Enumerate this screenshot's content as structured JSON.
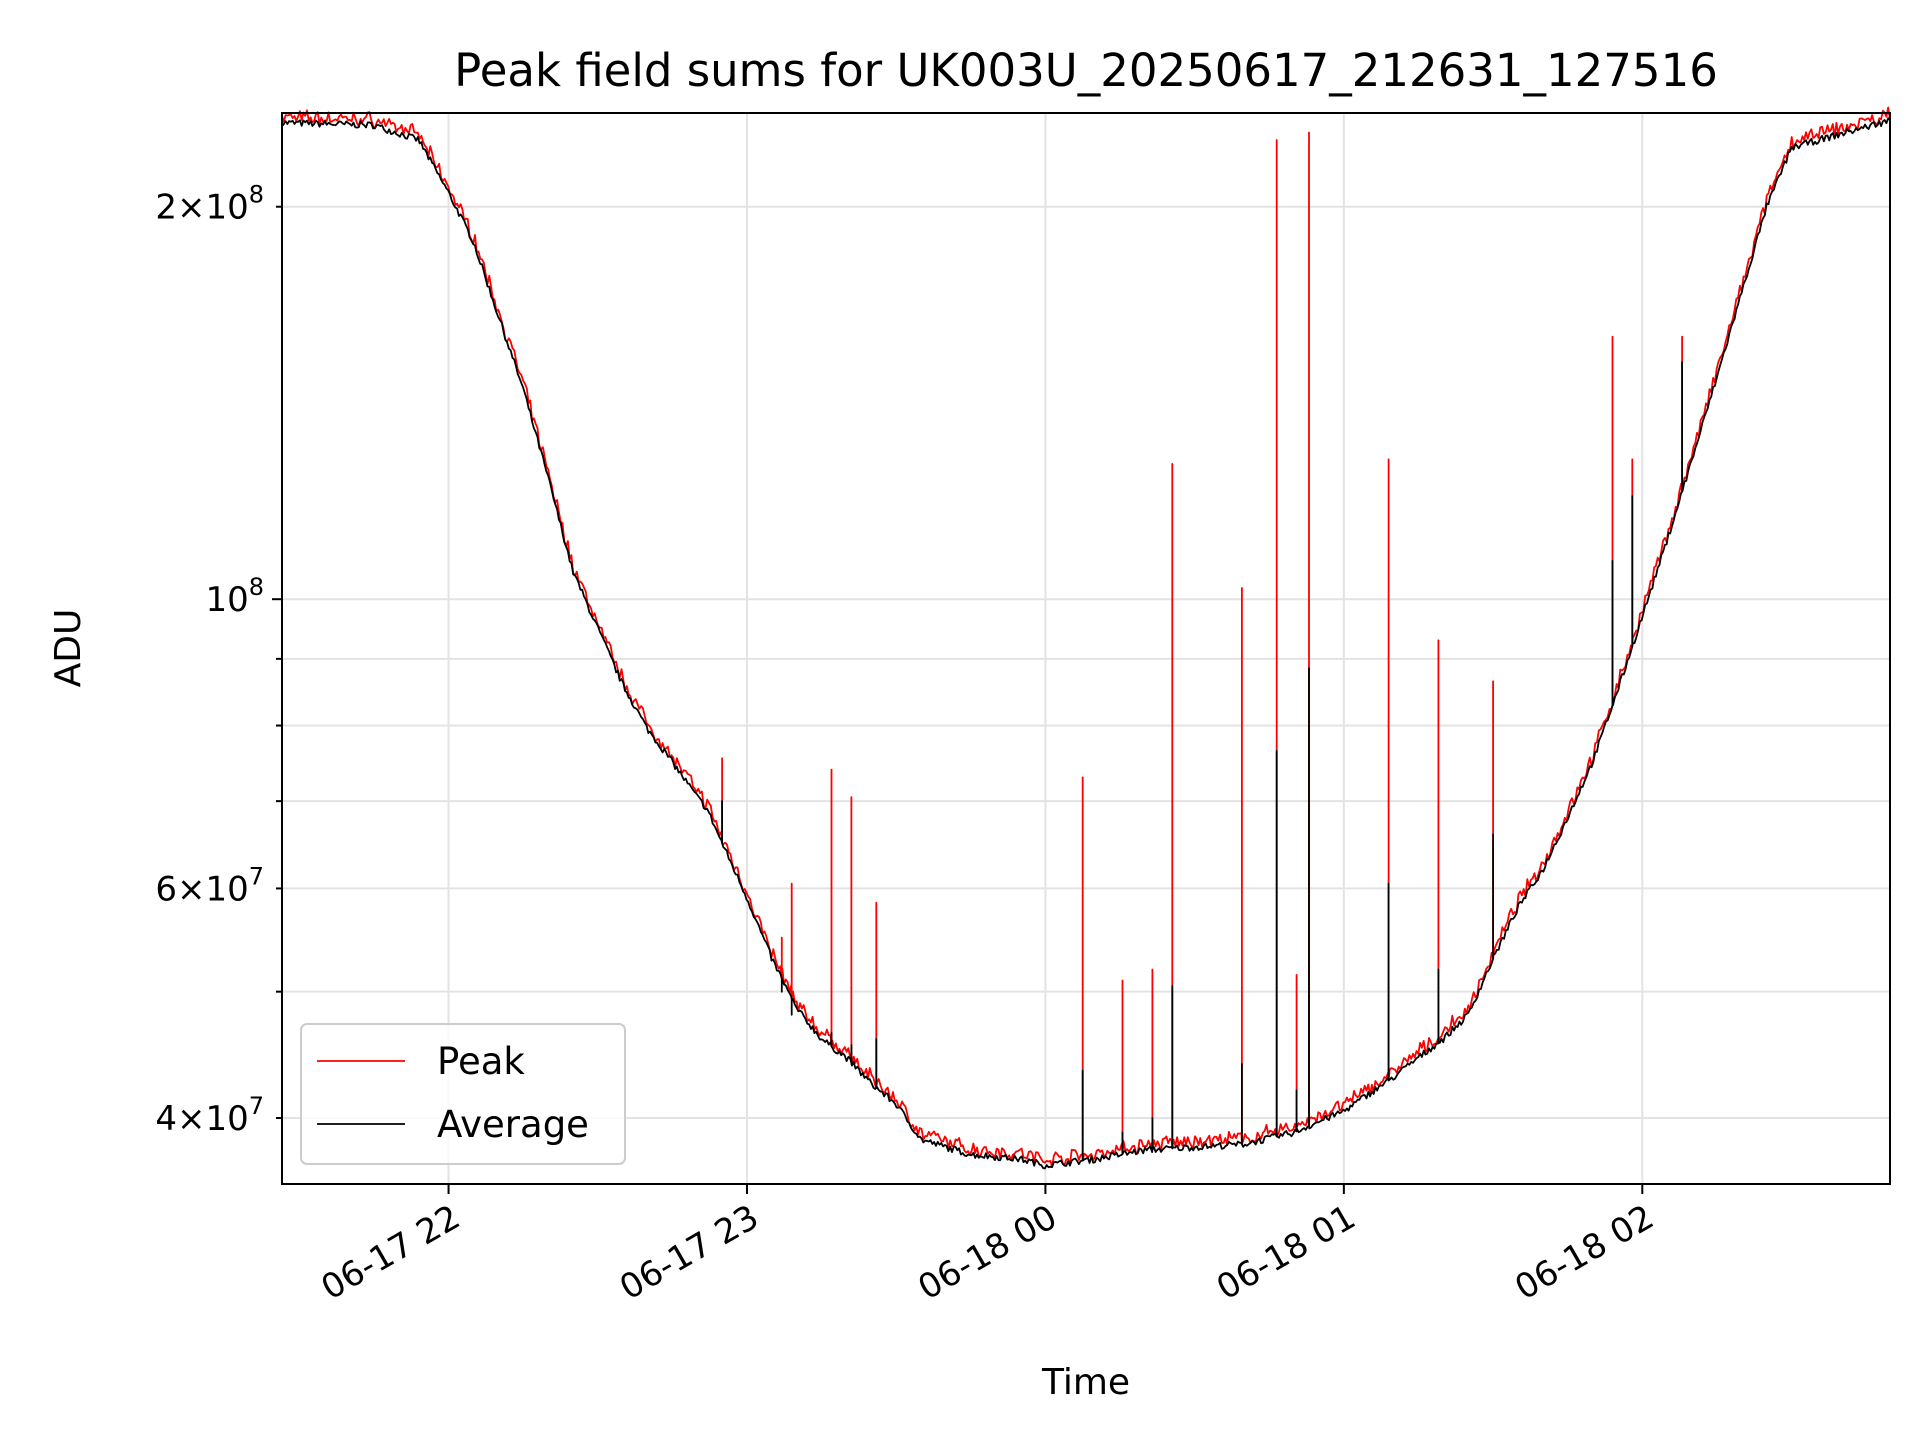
{
  "chart_data": {
    "type": "line",
    "title": "Peak field sums for UK003U_20250617_212631_127516",
    "xlabel": "Time",
    "ylabel": "ADU",
    "yscale": "log",
    "xlim": [
      "2025-06-17 21:26:31",
      "2025-06-18 02:49:48"
    ],
    "ylim": [
      35600000,
      236000000
    ],
    "grid": true,
    "legend_position": "lower left",
    "x_ticks": [
      {
        "value": "2025-06-17 22:00",
        "label": "06-17 22"
      },
      {
        "value": "2025-06-17 23:00",
        "label": "06-17 23"
      },
      {
        "value": "2025-06-18 00:00",
        "label": "06-18 00"
      },
      {
        "value": "2025-06-18 01:00",
        "label": "06-18 01"
      },
      {
        "value": "2025-06-18 02:00",
        "label": "06-18 02"
      }
    ],
    "y_major_ticks": [
      {
        "value": 100000000,
        "base": "10",
        "exp": "8"
      }
    ],
    "y_minor_ticks": [
      {
        "value": 40000000,
        "mant": "4",
        "exp": "7"
      },
      {
        "value": 60000000,
        "mant": "6",
        "exp": "7"
      },
      {
        "value": 200000000,
        "mant": "2",
        "exp": "8"
      }
    ],
    "y_minor_unlabeled": [
      50000000,
      70000000,
      80000000,
      90000000
    ],
    "baseline": {
      "x": [
        "2025-06-17 21:26:31",
        "2025-06-17 21:45:00",
        "2025-06-17 21:54:00",
        "2025-06-17 22:00:00",
        "2025-06-17 22:05:00",
        "2025-06-17 22:10:00",
        "2025-06-17 22:15:00",
        "2025-06-17 22:20:00",
        "2025-06-17 22:25:00",
        "2025-06-17 22:30:00",
        "2025-06-17 22:35:00",
        "2025-06-17 22:40:00",
        "2025-06-17 22:45:00",
        "2025-06-17 22:50:00",
        "2025-06-17 22:52:00",
        "2025-06-17 22:55:00",
        "2025-06-17 23:00:00",
        "2025-06-17 23:05:00",
        "2025-06-17 23:10:00",
        "2025-06-17 23:15:00",
        "2025-06-17 23:20:00",
        "2025-06-17 23:25:00",
        "2025-06-17 23:30:00",
        "2025-06-17 23:35:00",
        "2025-06-17 23:45:00",
        "2025-06-17 23:55:00",
        "2025-06-18 00:00:00",
        "2025-06-18 00:10:00",
        "2025-06-18 00:20:00",
        "2025-06-18 00:30:00",
        "2025-06-18 00:40:00",
        "2025-06-18 00:50:00",
        "2025-06-18 01:00:00",
        "2025-06-18 01:10:00",
        "2025-06-18 01:15:00",
        "2025-06-18 01:20:00",
        "2025-06-18 01:25:00",
        "2025-06-18 01:30:00",
        "2025-06-18 01:35:00",
        "2025-06-18 01:40:00",
        "2025-06-18 01:45:00",
        "2025-06-18 01:50:00",
        "2025-06-18 01:55:00",
        "2025-06-18 02:00:00",
        "2025-06-18 02:05:00",
        "2025-06-18 02:10:00",
        "2025-06-18 02:15:00",
        "2025-06-18 02:20:00",
        "2025-06-18 02:25:00",
        "2025-06-18 02:30:00",
        "2025-06-18 02:49:48"
      ],
      "average": [
        232000000,
        231000000,
        225000000,
        205000000,
        188000000,
        165000000,
        145000000,
        124000000,
        105000000,
        95000000,
        86000000,
        79500000,
        75000000,
        70500000,
        69000000,
        65000000,
        59000000,
        53000000,
        48500000,
        46000000,
        44500000,
        42500000,
        41000000,
        38500000,
        37500000,
        37200000,
        36800000,
        37200000,
        37800000,
        38000000,
        38200000,
        39000000,
        40500000,
        43000000,
        44500000,
        46000000,
        48000000,
        53000000,
        58000000,
        62000000,
        68000000,
        75000000,
        85000000,
        97000000,
        111000000,
        128000000,
        148000000,
        172000000,
        200000000,
        222000000,
        233000000
      ],
      "peak_offset_ratio": 1.02
    },
    "spikes": [
      {
        "x": "2025-06-17 22:55:00",
        "peak": 75500000,
        "average": 70000000
      },
      {
        "x": "2025-06-17 23:07:00",
        "peak": 55000000,
        "average": 50000000
      },
      {
        "x": "2025-06-17 23:09:00",
        "peak": 60500000,
        "average": 48000000
      },
      {
        "x": "2025-06-17 23:17:00",
        "peak": 74000000,
        "average": 46500000
      },
      {
        "x": "2025-06-17 23:21:00",
        "peak": 70500000,
        "average": 45500000
      },
      {
        "x": "2025-06-17 23:26:00",
        "peak": 58500000,
        "average": 46000000
      },
      {
        "x": "2025-06-18 00:07:30",
        "peak": 73000000,
        "average": 43500000
      },
      {
        "x": "2025-06-18 00:15:30",
        "peak": 51000000,
        "average": 39000000
      },
      {
        "x": "2025-06-18 00:21:30",
        "peak": 52000000,
        "average": 40000000
      },
      {
        "x": "2025-06-18 00:25:30",
        "peak": 127000000,
        "average": 50500000
      },
      {
        "x": "2025-06-18 00:39:30",
        "peak": 102000000,
        "average": 44000000
      },
      {
        "x": "2025-06-18 00:46:30",
        "peak": 225000000,
        "average": 76500000
      },
      {
        "x": "2025-06-18 00:50:30",
        "peak": 51500000,
        "average": 42000000
      },
      {
        "x": "2025-06-18 00:53:00",
        "peak": 228000000,
        "average": 88500000
      },
      {
        "x": "2025-06-18 01:09:00",
        "peak": 128000000,
        "average": 60500000
      },
      {
        "x": "2025-06-18 01:19:00",
        "peak": 93000000,
        "average": 52000000
      },
      {
        "x": "2025-06-18 01:30:00",
        "peak": 86500000,
        "average": 66000000
      },
      {
        "x": "2025-06-18 01:54:00",
        "peak": 159000000,
        "average": 107000000
      },
      {
        "x": "2025-06-18 01:58:00",
        "peak": 128000000,
        "average": 120000000
      },
      {
        "x": "2025-06-18 02:08:00",
        "peak": 159000000,
        "average": 152000000
      }
    ],
    "series": [
      {
        "name": "Peak",
        "color": "#ff0000"
      },
      {
        "name": "Average",
        "color": "#000000"
      }
    ]
  }
}
